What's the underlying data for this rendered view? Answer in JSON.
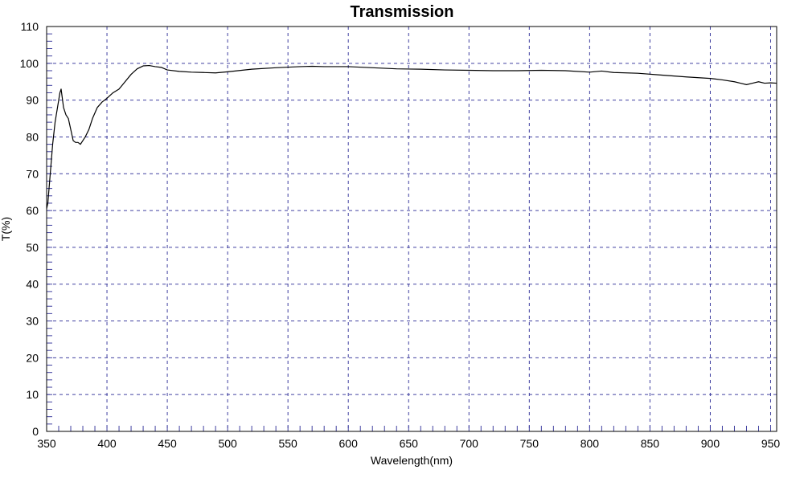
{
  "chart_data": {
    "type": "line",
    "title": "Transmission",
    "xlabel": "Wavelength(nm)",
    "ylabel": "T(%)",
    "xlim": [
      350,
      955
    ],
    "ylim": [
      0,
      110
    ],
    "x_ticks": [
      "350",
      "400",
      "450",
      "500",
      "550",
      "600",
      "650",
      "700",
      "750",
      "800",
      "850",
      "900",
      "950"
    ],
    "y_ticks": [
      "0",
      "10",
      "20",
      "30",
      "40",
      "50",
      "60",
      "70",
      "80",
      "90",
      "100",
      "110"
    ],
    "grid": true,
    "legend": "none",
    "series": [
      {
        "x": [
          350,
          351,
          353,
          355,
          357,
          359,
          361,
          362,
          364,
          366,
          368,
          370,
          372,
          374,
          376,
          378,
          380,
          382,
          385,
          388,
          392,
          396,
          400,
          405,
          410,
          415,
          420,
          425,
          430,
          435,
          440,
          445,
          450,
          460,
          470,
          480,
          490,
          500,
          520,
          540,
          560,
          570,
          580,
          600,
          620,
          640,
          660,
          680,
          700,
          720,
          740,
          760,
          780,
          800,
          810,
          820,
          840,
          860,
          880,
          900,
          910,
          920,
          925,
          930,
          935,
          940,
          945,
          950,
          955
        ],
        "y": [
          60.5,
          62,
          70,
          78,
          84,
          88,
          92,
          93,
          88,
          86,
          85,
          82,
          79,
          78.5,
          78.5,
          78,
          79,
          80,
          82,
          85,
          88,
          89.5,
          90.5,
          92,
          93,
          95,
          97,
          98.5,
          99.3,
          99.4,
          99.1,
          98.9,
          98.2,
          97.8,
          97.6,
          97.5,
          97.4,
          97.7,
          98.4,
          98.8,
          99.1,
          99.2,
          99.1,
          99.1,
          98.8,
          98.5,
          98.4,
          98.2,
          98.1,
          98,
          98,
          98.1,
          98,
          97.6,
          97.9,
          97.5,
          97.3,
          96.8,
          96.3,
          95.9,
          95.5,
          95,
          94.6,
          94.2,
          94.6,
          95,
          94.6,
          94.7,
          94.6
        ],
        "color": "#000000"
      }
    ],
    "colors": {
      "grid": "#4040a0",
      "axis": "#000000",
      "line": "#000000"
    }
  }
}
